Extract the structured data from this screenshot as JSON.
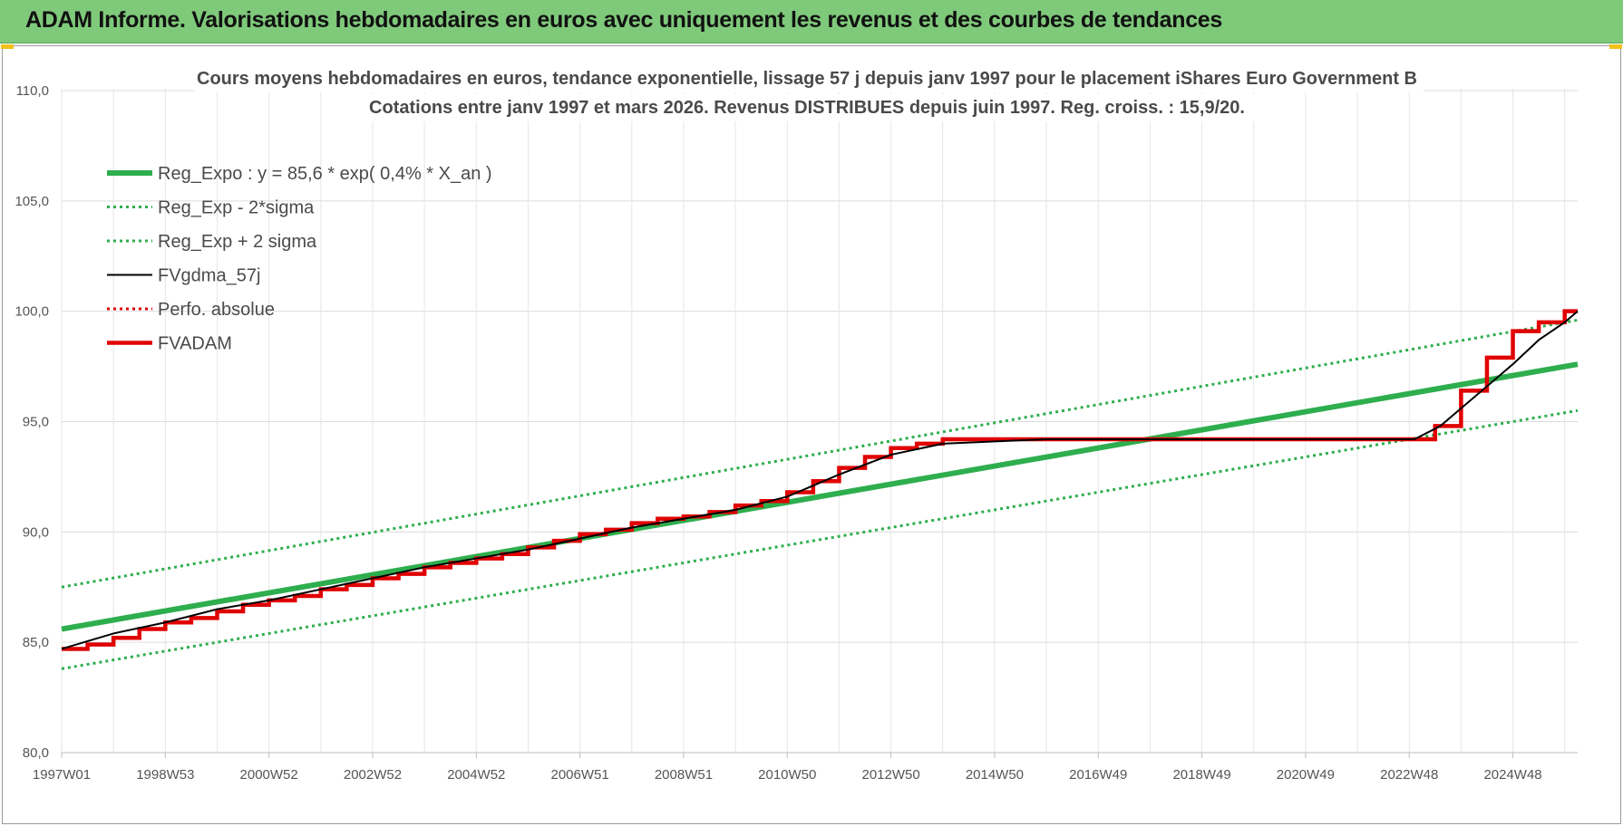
{
  "header": {
    "title": "ADAM Informe. Valorisations hebdomadaires en euros avec uniquement les revenus et des courbes de tendances",
    "background_color": "#7fc97a"
  },
  "chart_data": {
    "type": "line",
    "title": "Cours moyens hebdomadaires en euros, tendance exponentielle, lissage 57 j depuis janv 1997 pour le placement iShares Euro Government B",
    "subtitle": "Cotations entre janv 1997 et mars 2026. Revenus DISTRIBUES depuis juin 1997. Reg. croiss. : 15,9/20.",
    "ylim": [
      80,
      110
    ],
    "y_ticks": [
      "80,0",
      "85,0",
      "90,0",
      "95,0",
      "100,0",
      "105,0",
      "110,0"
    ],
    "x_tick_labels": [
      "1997W01",
      "1998W53",
      "2000W52",
      "2002W52",
      "2004W52",
      "2006W51",
      "2008W51",
      "2010W50",
      "2012W50",
      "2014W50",
      "2016W49",
      "2018W49",
      "2020W49",
      "2022W48",
      "2024W48"
    ],
    "x_year_range": [
      1997.0,
      2026.25
    ],
    "grid": true,
    "legend_position": "top-left",
    "series": [
      {
        "name": "Reg_Expo : y = 85,6 * exp( 0,4% *  X_an )",
        "color": "#2eae4e",
        "style": "solid-thick",
        "x": [
          1997.0,
          2026.25
        ],
        "values": [
          85.6,
          97.6
        ]
      },
      {
        "name": "Reg_Exp - 2*sigma",
        "color": "#2eae4e",
        "style": "dotted",
        "x": [
          1997.0,
          2026.25
        ],
        "values": [
          83.8,
          95.5
        ]
      },
      {
        "name": "Reg_Exp + 2 sigma",
        "color": "#2eae4e",
        "style": "dotted",
        "x": [
          1997.0,
          2026.25
        ],
        "values": [
          87.5,
          99.6
        ]
      },
      {
        "name": "FVgdma_57j",
        "color": "#000000",
        "style": "solid-thin",
        "x": [
          1997.0,
          1998.0,
          1999.0,
          2000.0,
          2001.0,
          2002.0,
          2003.0,
          2004.0,
          2005.0,
          2006.0,
          2007.0,
          2008.0,
          2009.0,
          2010.0,
          2011.0,
          2012.0,
          2013.0,
          2014.0,
          2016.0,
          2018.0,
          2020.0,
          2022.0,
          2023.1,
          2023.6,
          2024.0,
          2024.5,
          2025.0,
          2025.5,
          2026.0,
          2026.25
        ],
        "values": [
          84.7,
          85.4,
          85.9,
          86.5,
          86.9,
          87.4,
          87.9,
          88.4,
          88.8,
          89.2,
          89.7,
          90.2,
          90.6,
          91.0,
          91.6,
          92.6,
          93.5,
          94.0,
          94.2,
          94.2,
          94.2,
          94.2,
          94.2,
          94.8,
          95.6,
          96.6,
          97.6,
          98.7,
          99.5,
          100.0
        ]
      },
      {
        "name": "Perfo. absolue",
        "color": "#e00000",
        "style": "dotted",
        "x": [],
        "values": []
      },
      {
        "name": "FVADAM",
        "color": "#e00000",
        "style": "step-thick",
        "x": [
          1997.0,
          1997.5,
          1998.0,
          1998.5,
          1999.0,
          1999.5,
          2000.0,
          2000.5,
          2001.0,
          2001.5,
          2002.0,
          2002.5,
          2003.0,
          2003.5,
          2004.0,
          2004.5,
          2005.0,
          2005.5,
          2006.0,
          2006.5,
          2007.0,
          2007.5,
          2008.0,
          2008.5,
          2009.0,
          2009.5,
          2010.0,
          2010.5,
          2011.0,
          2011.5,
          2012.0,
          2012.5,
          2013.0,
          2013.5,
          2014.0,
          2015.0,
          2016.0,
          2017.0,
          2018.0,
          2019.0,
          2020.0,
          2021.0,
          2022.0,
          2023.1,
          2023.5,
          2024.0,
          2024.5,
          2025.0,
          2025.5,
          2026.0,
          2026.25
        ],
        "values": [
          84.7,
          84.9,
          85.2,
          85.6,
          85.9,
          86.1,
          86.4,
          86.7,
          86.9,
          87.1,
          87.4,
          87.6,
          87.9,
          88.1,
          88.4,
          88.6,
          88.8,
          89.0,
          89.3,
          89.6,
          89.9,
          90.1,
          90.4,
          90.6,
          90.7,
          90.9,
          91.2,
          91.4,
          91.8,
          92.3,
          92.9,
          93.4,
          93.8,
          94.0,
          94.2,
          94.2,
          94.2,
          94.2,
          94.2,
          94.2,
          94.2,
          94.2,
          94.2,
          94.2,
          94.8,
          96.4,
          97.9,
          99.1,
          99.5,
          100.0,
          100.0
        ]
      }
    ]
  }
}
